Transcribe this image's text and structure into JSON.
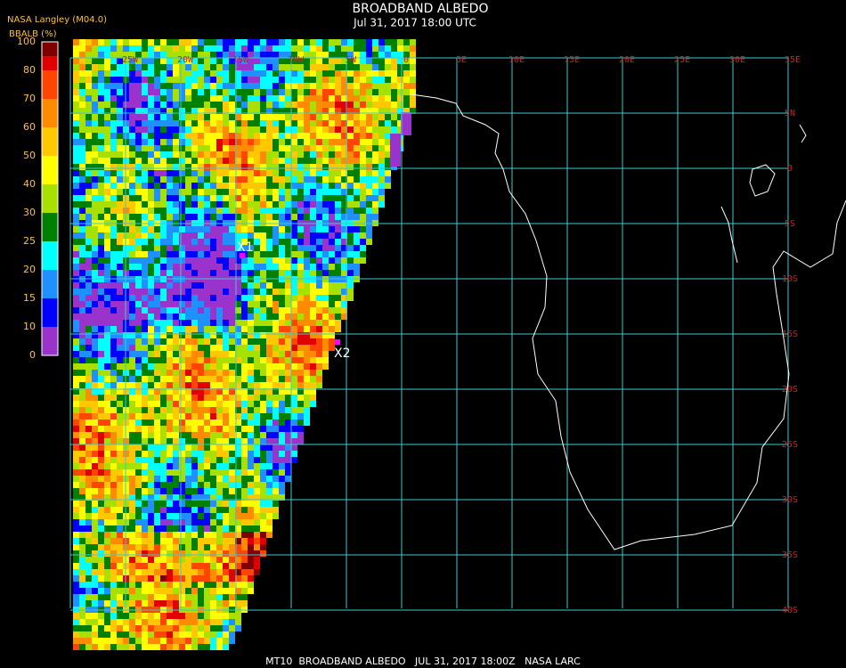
{
  "header": {
    "title": "BROADBAND ALBEDO",
    "subtitle": "Jul 31, 2017 18:00 UTC"
  },
  "legend": {
    "source": "NASA Langley (M04.0)",
    "label": "BBALB (%)",
    "ticks": [
      100,
      80,
      70,
      60,
      50,
      40,
      30,
      25,
      20,
      15,
      10,
      0
    ],
    "colors": [
      "#800000",
      "#e00000",
      "#ff4500",
      "#ff8c00",
      "#ffc800",
      "#ffff00",
      "#a8e000",
      "#008000",
      "#00ffff",
      "#1e90ff",
      "#0000ff",
      "#9933cc"
    ]
  },
  "map": {
    "lon_labels": [
      "25W",
      "20W",
      "15W",
      "10W",
      "5W",
      "0",
      "5E",
      "10E",
      "15E",
      "20E",
      "25E",
      "30E",
      "35E"
    ],
    "lat_labels": [
      "5N",
      "0",
      "5S",
      "10S",
      "15S",
      "20S",
      "25S",
      "30S",
      "35S",
      "40S"
    ],
    "markers": [
      "X1",
      "X2"
    ]
  },
  "footer": "MT10  BROADBAND ALBEDO   JUL 31, 2017 18:00Z   NASA LARC"
}
